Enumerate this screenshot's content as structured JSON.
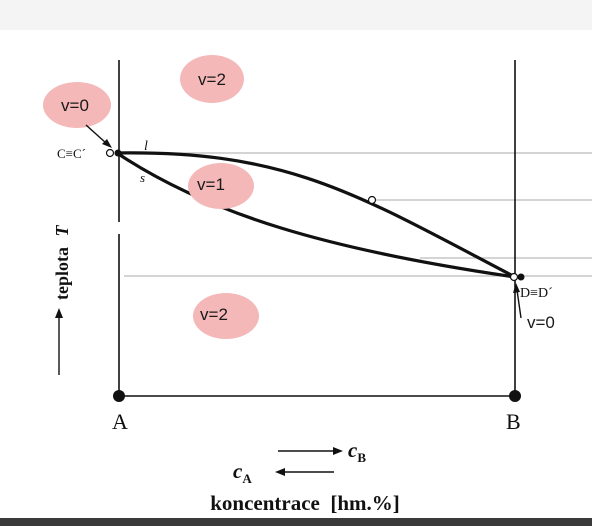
{
  "diagram": {
    "labels": {
      "left_point": "C≡C´",
      "right_point": "D≡D´",
      "curve_liquidus": "l",
      "curve_solidus": "s",
      "axis_left_end": "A",
      "axis_right_end": "B",
      "y_axis_label": "teplota",
      "y_axis_symbol": "T",
      "cb_symbol": "c",
      "cb_subscript": "B",
      "ca_symbol": "c",
      "ca_subscript": "A",
      "x_axis_label": "koncentrace  [hm.%]"
    },
    "regions": [
      {
        "id": "top",
        "label": "v=2"
      },
      {
        "id": "middle",
        "label": "v=1"
      },
      {
        "id": "bottom",
        "label": "v=2"
      }
    ],
    "point_annotations": [
      {
        "id": "left",
        "label": "v=0"
      },
      {
        "id": "right",
        "label": "v=0"
      }
    ],
    "colors": {
      "badge_fill": "#f4b8b8",
      "line": "#111111",
      "guide_line": "#bbbbbb"
    }
  }
}
